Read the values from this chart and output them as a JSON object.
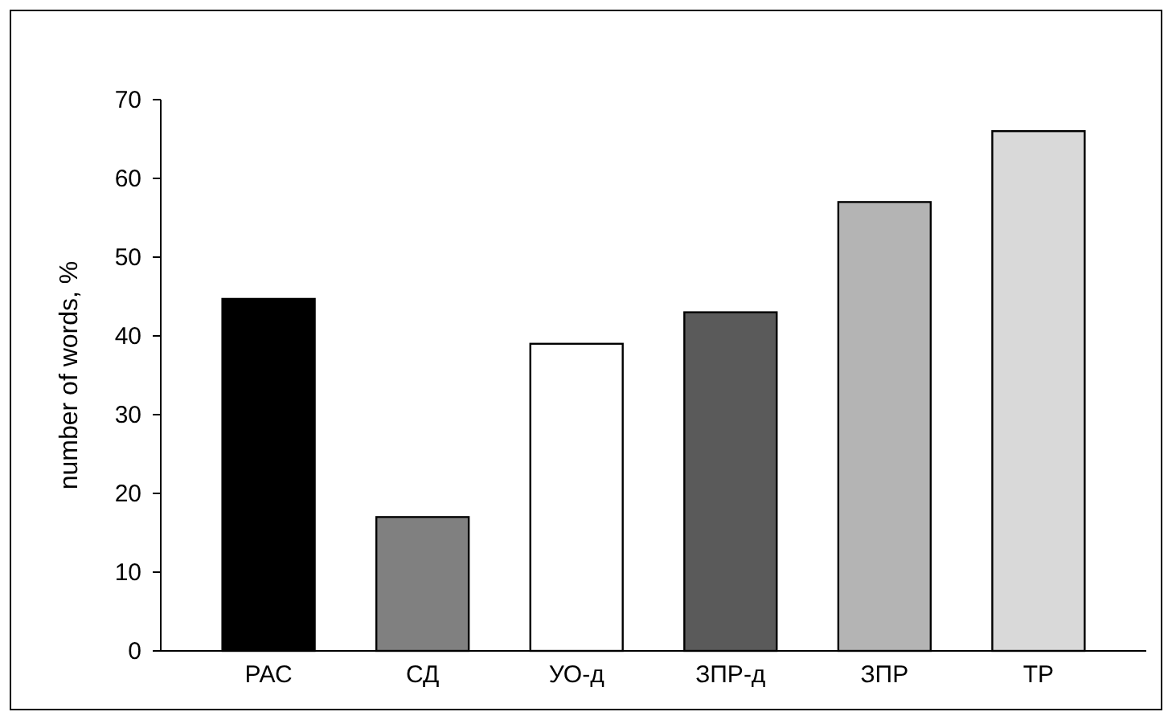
{
  "chart_data": {
    "type": "bar",
    "categories": [
      "РАС",
      "СД",
      "УО-д",
      "ЗПР-д",
      "ЗПР",
      "ТР"
    ],
    "values": [
      44.7,
      17,
      39,
      43,
      57,
      66
    ],
    "colors": [
      "#000000",
      "#808080",
      "#ffffff",
      "#5a5a5a",
      "#b4b4b4",
      "#d9d9d9"
    ],
    "ylabel": "number of words, %",
    "ylim": [
      0,
      70
    ],
    "yticks": [
      0,
      10,
      20,
      30,
      40,
      50,
      60,
      70
    ],
    "grid": false
  }
}
